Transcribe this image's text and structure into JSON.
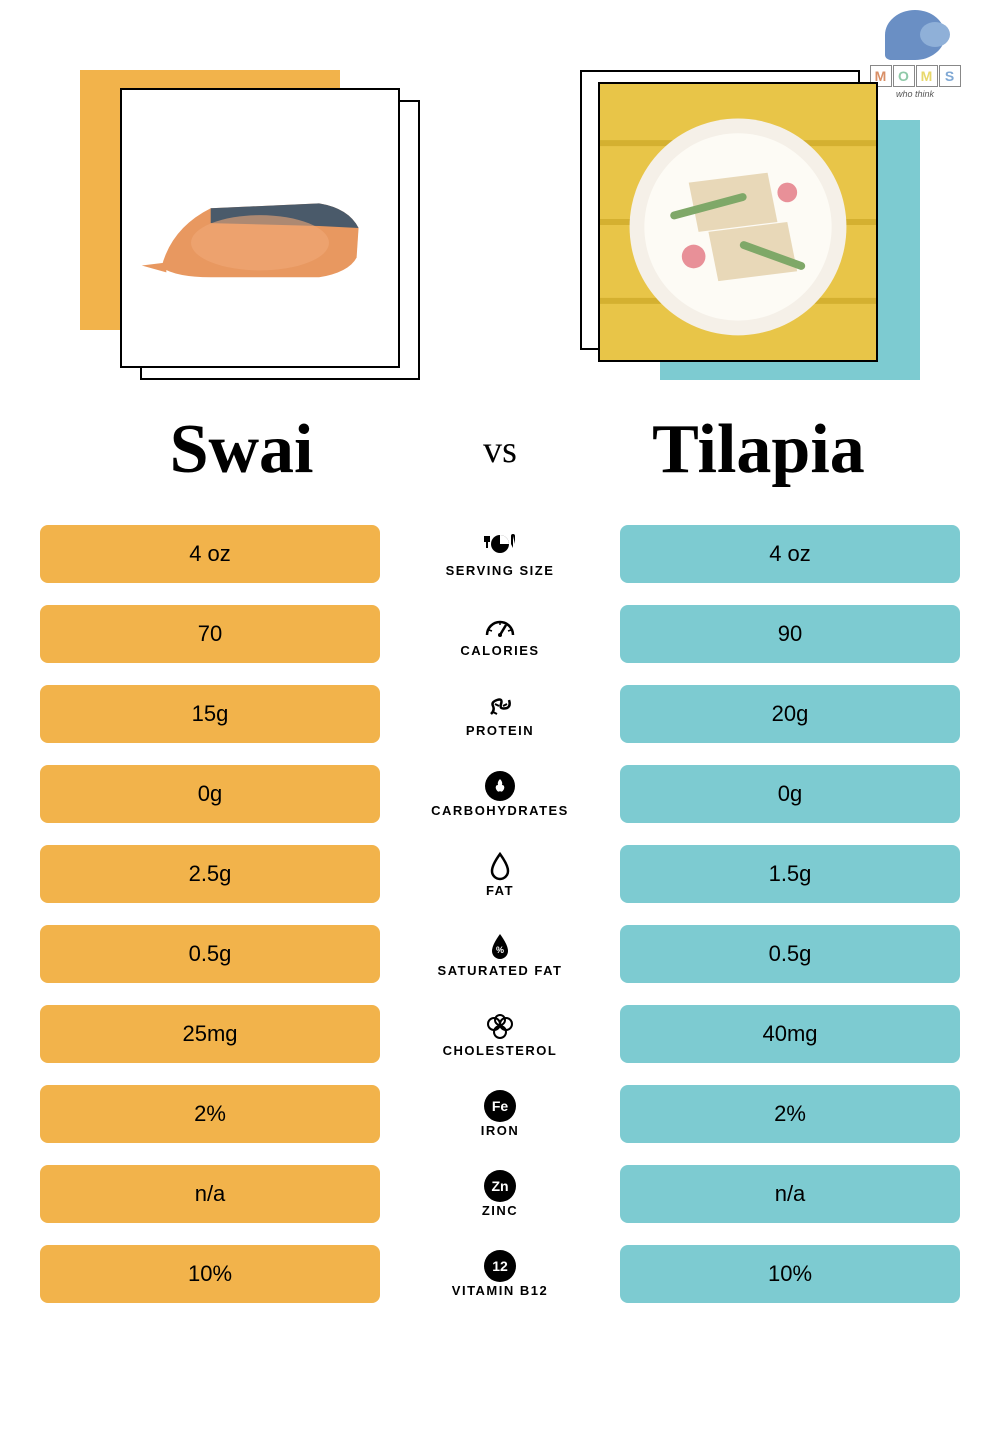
{
  "logo": {
    "letters": [
      "M",
      "O",
      "M",
      "S"
    ],
    "block_colors": [
      "#d98f66",
      "#8fc9a8",
      "#e8d86b",
      "#7fa8d4"
    ],
    "tagline": "who think"
  },
  "comparison": {
    "left_title": "Swai",
    "right_title": "Tilapia",
    "vs_label": "vs",
    "colors": {
      "left": "#f2b34b",
      "right": "#7dcbd1"
    },
    "rows": [
      {
        "label": "SERVING SIZE",
        "icon": "serving",
        "left": "4 oz",
        "right": "4 oz"
      },
      {
        "label": "CALORIES",
        "icon": "calories",
        "left": "70",
        "right": "90"
      },
      {
        "label": "PROTEIN",
        "icon": "protein",
        "left": "15g",
        "right": "20g"
      },
      {
        "label": "CARBOHYDRATES",
        "icon": "carbs",
        "left": "0g",
        "right": "0g"
      },
      {
        "label": "FAT",
        "icon": "fat",
        "left": "2.5g",
        "right": "1.5g"
      },
      {
        "label": "SATURATED FAT",
        "icon": "satfat",
        "left": "0.5g",
        "right": "0.5g"
      },
      {
        "label": "CHOLESTEROL",
        "icon": "cholesterol",
        "left": "25mg",
        "right": "40mg"
      },
      {
        "label": "IRON",
        "icon": "Fe",
        "left": "2%",
        "right": "2%"
      },
      {
        "label": "ZINC",
        "icon": "Zn",
        "left": "n/a",
        "right": "n/a"
      },
      {
        "label": "VITAMIN B12",
        "icon": "12",
        "left": "10%",
        "right": "10%"
      }
    ]
  }
}
